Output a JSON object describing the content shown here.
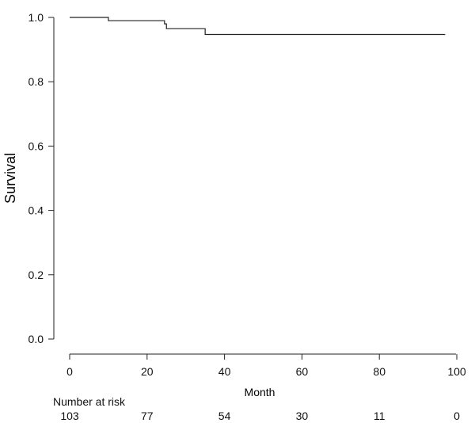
{
  "chart_data": {
    "type": "line",
    "subtype": "kaplan-meier-step",
    "title": "",
    "xlabel": "Month",
    "ylabel": "Survival",
    "xlim": [
      0,
      100
    ],
    "ylim": [
      0.0,
      1.0
    ],
    "x_ticks": [
      0,
      20,
      40,
      60,
      80,
      100
    ],
    "y_ticks": [
      "0.0",
      "0.2",
      "0.4",
      "0.6",
      "0.8",
      "1.0"
    ],
    "grid": false,
    "series": [
      {
        "x": [
          0,
          10,
          24,
          24.5,
          25,
          35,
          97
        ],
        "y": [
          1.0,
          0.99,
          0.99,
          0.98,
          0.965,
          0.947,
          0.947
        ]
      }
    ],
    "risk_table": {
      "label": "Number at risk",
      "times": [
        0,
        20,
        40,
        60,
        80,
        100
      ],
      "counts": [
        "103",
        "77",
        "54",
        "30",
        "11",
        "0"
      ]
    }
  }
}
